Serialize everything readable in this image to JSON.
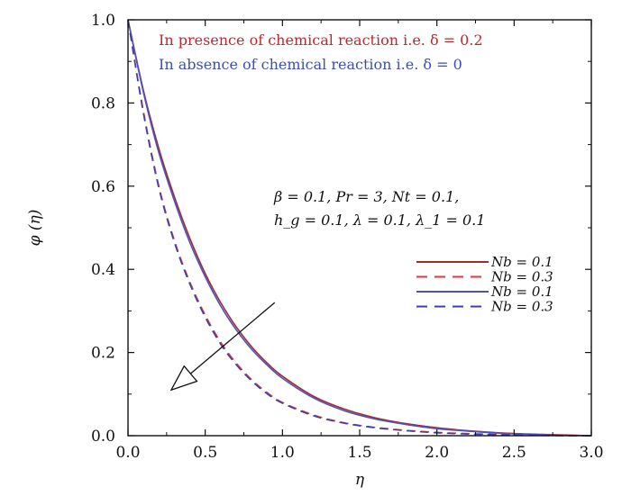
{
  "chart_data": {
    "type": "line",
    "xlabel": "η",
    "ylabel": "φ (η)",
    "xlim": [
      0.0,
      3.0
    ],
    "ylim": [
      0.0,
      1.0
    ],
    "xticks": [
      "0.0",
      "0.5",
      "1.0",
      "1.5",
      "2.0",
      "2.5",
      "3.0"
    ],
    "yticks": [
      "0.0",
      "0.2",
      "0.4",
      "0.6",
      "0.8",
      "1.0"
    ],
    "grid": false,
    "legend_position": "right",
    "annotations": {
      "red_note": "In presence of chemical reaction i.e. δ = 0.2",
      "blue_note": "In absence of chemical reaction i.e. δ = 0",
      "params_line1": "β = 0.1,  Pr = 3,  Nt = 0.1,",
      "params_line2": "h_g = 0.1,  λ = 0.1,  λ_1 = 0.1"
    },
    "arrow": {
      "from": [
        0.95,
        0.32
      ],
      "to": [
        0.28,
        0.11
      ]
    },
    "series": [
      {
        "name": "Nb = 0.1",
        "color": "#a52a2a",
        "dash": "solid",
        "x": [
          0,
          0.1,
          0.2,
          0.3,
          0.4,
          0.5,
          0.6,
          0.7,
          0.8,
          0.9,
          1.0,
          1.2,
          1.4,
          1.6,
          1.8,
          2.0,
          2.2,
          2.4,
          2.6,
          2.8,
          3.0
        ],
        "y": [
          1.0,
          0.83,
          0.69,
          0.575,
          0.475,
          0.39,
          0.32,
          0.262,
          0.214,
          0.175,
          0.143,
          0.095,
          0.064,
          0.043,
          0.029,
          0.019,
          0.012,
          0.007,
          0.004,
          0.002,
          0.0
        ]
      },
      {
        "name": "Nb = 0.3",
        "color": "#d93a3a",
        "dash": "dashed",
        "x": [
          0,
          0.1,
          0.2,
          0.3,
          0.4,
          0.5,
          0.6,
          0.7,
          0.8,
          0.9,
          1.0,
          1.2,
          1.4,
          1.6,
          1.8,
          2.0,
          2.2,
          2.4,
          2.6,
          2.8,
          3.0
        ],
        "y": [
          1.0,
          0.78,
          0.6,
          0.47,
          0.37,
          0.29,
          0.225,
          0.175,
          0.135,
          0.104,
          0.08,
          0.05,
          0.031,
          0.02,
          0.013,
          0.008,
          0.005,
          0.003,
          0.002,
          0.001,
          0.0
        ]
      },
      {
        "name": "Nb = 0.1",
        "color": "#4a52c4",
        "dash": "solid",
        "x": [
          0,
          0.1,
          0.2,
          0.3,
          0.4,
          0.5,
          0.6,
          0.7,
          0.8,
          0.9,
          1.0,
          1.2,
          1.4,
          1.6,
          1.8,
          2.0,
          2.2,
          2.4,
          2.6,
          2.8,
          3.0
        ],
        "y": [
          1.0,
          0.825,
          0.68,
          0.565,
          0.465,
          0.382,
          0.312,
          0.255,
          0.208,
          0.17,
          0.138,
          0.091,
          0.06,
          0.04,
          0.027,
          0.017,
          0.011,
          0.006,
          0.003,
          0.001,
          0.0
        ]
      },
      {
        "name": "Nb = 0.3",
        "color": "#3b3fae",
        "dash": "dashed",
        "x": [
          0,
          0.1,
          0.2,
          0.3,
          0.4,
          0.5,
          0.6,
          0.7,
          0.8,
          0.9,
          1.0,
          1.2,
          1.4,
          1.6,
          1.8,
          2.0,
          2.2,
          2.4,
          2.6,
          2.8,
          3.0
        ],
        "y": [
          1.0,
          0.775,
          0.595,
          0.465,
          0.365,
          0.285,
          0.22,
          0.171,
          0.132,
          0.101,
          0.078,
          0.048,
          0.03,
          0.019,
          0.012,
          0.007,
          0.004,
          0.002,
          0.001,
          0.0,
          0.0
        ]
      }
    ]
  }
}
